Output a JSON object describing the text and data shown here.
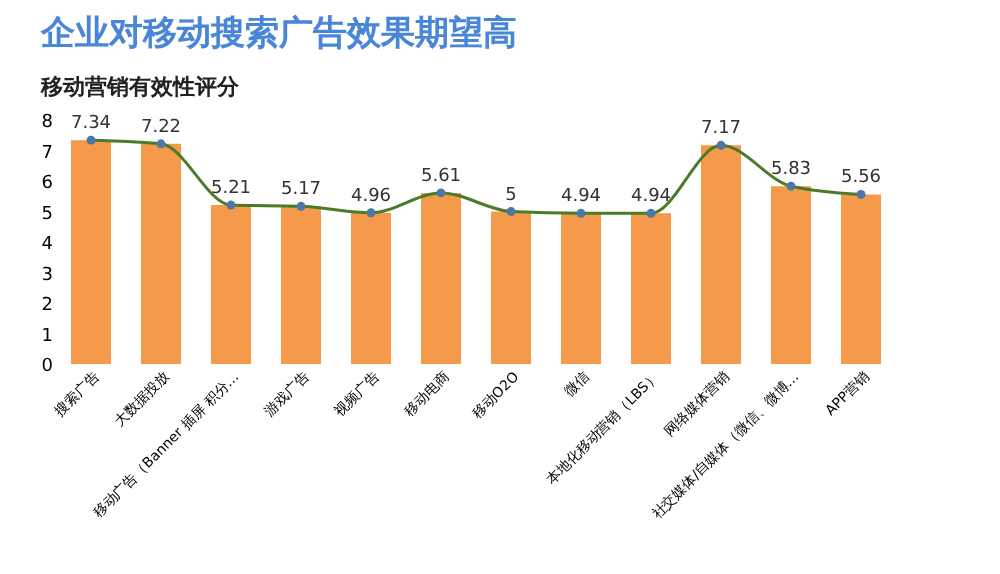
{
  "chart_data": {
    "type": "bar",
    "title": "企业对移动搜索广告效果期望高",
    "subtitle": "移动营销有效性评分",
    "categories": [
      "搜索广告",
      "大数据投放",
      "移动广告（Banner 插屏 积分…",
      "游戏广告",
      "视频广告",
      "移动电商",
      "移动O2O",
      "微信",
      "本地化移动营销（LBS）",
      "网络媒体营销",
      "社交媒体/自媒体（微信、微博…",
      "APP营销"
    ],
    "series": [
      {
        "color": "#f5994a",
        "values": [
          7.34,
          7.22,
          5.21,
          5.17,
          4.96,
          5.61,
          5,
          4.94,
          4.94,
          7.17,
          5.83,
          5.56
        ]
      },
      {
        "type": "line",
        "color": "#4a7a2a",
        "marker": "circle",
        "values": [
          7.34,
          7.22,
          5.21,
          5.17,
          4.96,
          5.61,
          5,
          4.94,
          4.94,
          7.17,
          5.83,
          5.56
        ],
        "value_labels": [
          "7.34",
          "7.22",
          "5.21",
          "5.17",
          "4.96",
          "5.61",
          "5",
          "4.94",
          "4.94",
          "7.17",
          "5.83",
          "5.56"
        ]
      }
    ],
    "ylim": [
      0,
      8
    ],
    "yticks": [
      0,
      1,
      2,
      3,
      4,
      5,
      6,
      7,
      8
    ],
    "grid": false,
    "legend": false
  }
}
